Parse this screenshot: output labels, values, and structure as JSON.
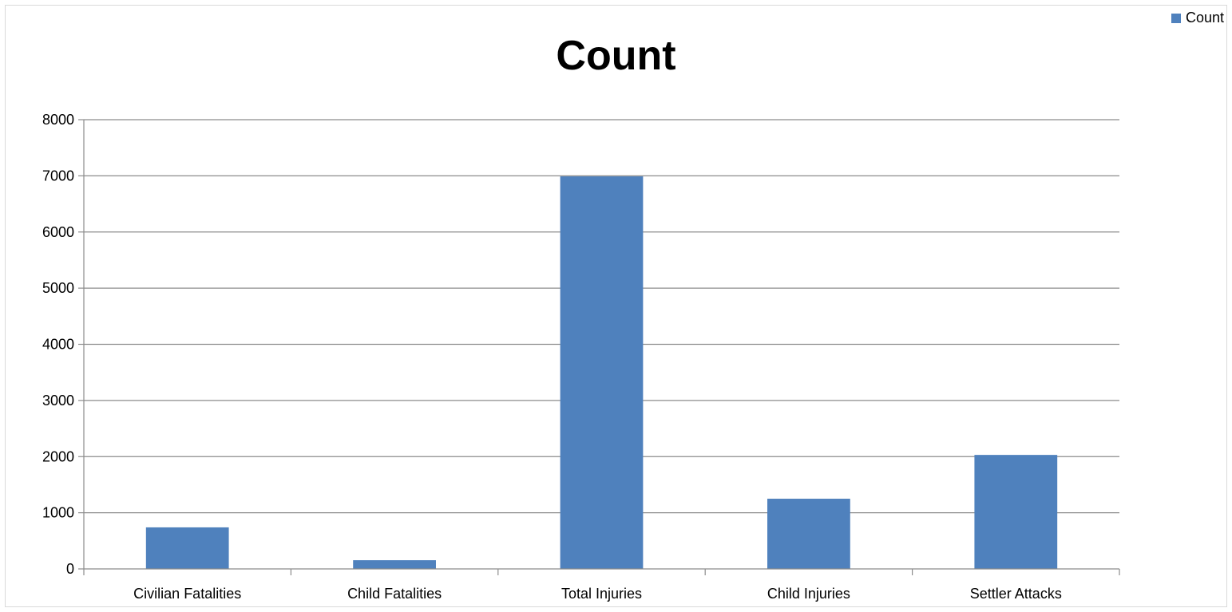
{
  "chart_data": {
    "type": "bar",
    "title": "Count",
    "categories": [
      "Civilian Fatalities",
      "Child Fatalities",
      "Total Injuries",
      "Child Injuries",
      "Settler Attacks"
    ],
    "series": [
      {
        "name": "Count",
        "values": [
          740,
          155,
          6990,
          1250,
          2030
        ],
        "color": "#4f81bd"
      }
    ],
    "ylim": [
      0,
      8000
    ],
    "yticks": [
      0,
      1000,
      2000,
      3000,
      4000,
      5000,
      6000,
      7000,
      8000
    ],
    "grid": true,
    "legend_position": "top-right"
  }
}
